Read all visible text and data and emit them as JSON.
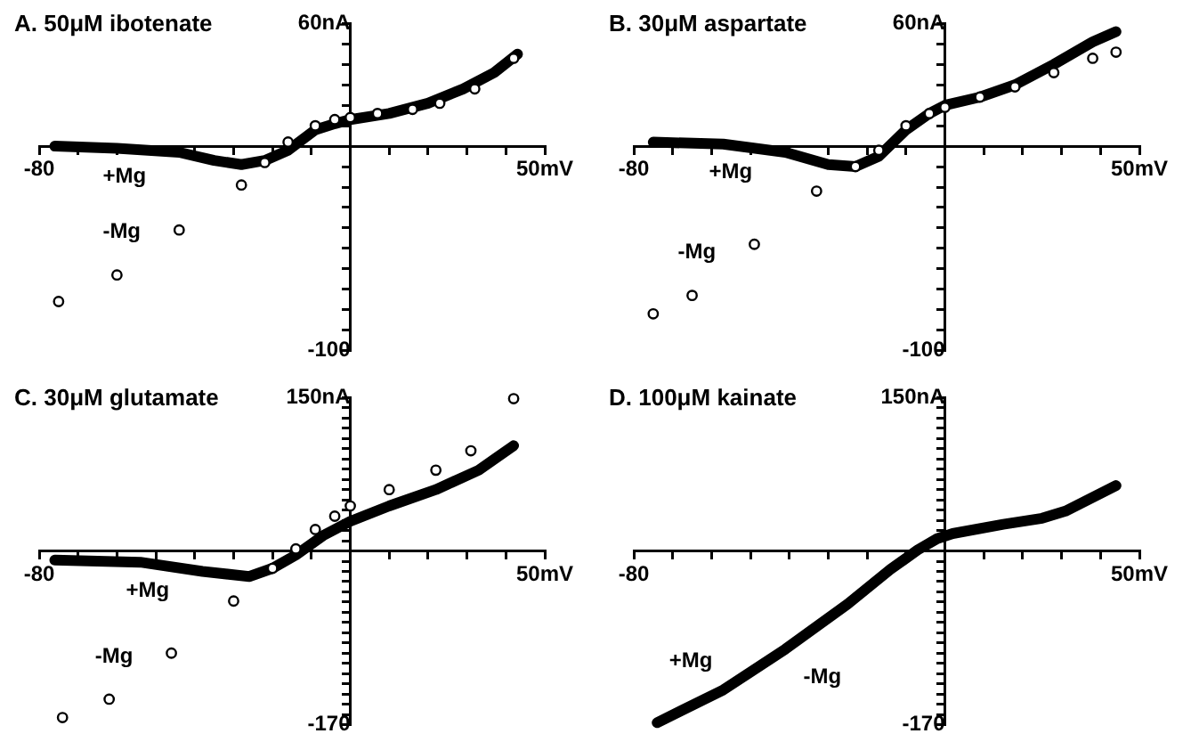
{
  "chart_data": [
    {
      "type": "line",
      "title": "A. 50μM ibotenate",
      "xlim": [
        -80,
        50
      ],
      "ylim": [
        -100,
        60
      ],
      "xticks": [
        {
          "value": -80,
          "label": "-80"
        },
        {
          "value": -70,
          "label": null
        },
        {
          "value": -60,
          "label": null
        },
        {
          "value": -50,
          "label": null
        },
        {
          "value": -40,
          "label": null
        },
        {
          "value": -30,
          "label": null
        },
        {
          "value": -20,
          "label": null
        },
        {
          "value": -10,
          "label": null
        },
        {
          "value": 0,
          "label": null
        },
        {
          "value": 10,
          "label": null
        },
        {
          "value": 20,
          "label": null
        },
        {
          "value": 30,
          "label": null
        },
        {
          "value": 40,
          "label": null
        },
        {
          "value": 50,
          "label": "50mV"
        }
      ],
      "yticks": [
        {
          "value": -100,
          "label": "-100"
        },
        {
          "value": -90,
          "label": null
        },
        {
          "value": -80,
          "label": null
        },
        {
          "value": -70,
          "label": null
        },
        {
          "value": -60,
          "label": null
        },
        {
          "value": -50,
          "label": null
        },
        {
          "value": -40,
          "label": null
        },
        {
          "value": -30,
          "label": null
        },
        {
          "value": -20,
          "label": null
        },
        {
          "value": -10,
          "label": null
        },
        {
          "value": 0,
          "label": null
        },
        {
          "value": 10,
          "label": null
        },
        {
          "value": 20,
          "label": null
        },
        {
          "value": 30,
          "label": null
        },
        {
          "value": 40,
          "label": null
        },
        {
          "value": 50,
          "label": null
        },
        {
          "value": 60,
          "label": "60nA"
        }
      ],
      "series": [
        {
          "name": "+Mg",
          "type": "line",
          "color": "#000000",
          "x": [
            -76,
            -60,
            -44,
            -35,
            -28,
            -22,
            -16,
            -9,
            -4,
            0,
            10,
            20,
            29,
            37,
            43
          ],
          "values": [
            0,
            -1,
            -3,
            -7,
            -9,
            -7,
            -2,
            8,
            11,
            13,
            16,
            21,
            28,
            36,
            45
          ]
        },
        {
          "name": "-Mg",
          "type": "scatter",
          "marker": "circle",
          "color": "#000000",
          "x": [
            -75,
            -60,
            -44,
            -28,
            -22,
            -16,
            -9,
            -4,
            0,
            7,
            16,
            23,
            32,
            42
          ],
          "values": [
            -76,
            -63,
            -41,
            -19,
            -8,
            2,
            10,
            13,
            14,
            16,
            18,
            21,
            28,
            43
          ]
        }
      ]
    },
    {
      "type": "line",
      "title": "B. 30μM aspartate",
      "xlim": [
        -80,
        50
      ],
      "ylim": [
        -100,
        60
      ],
      "xticks": [
        {
          "value": -80,
          "label": "-80"
        },
        {
          "value": -70,
          "label": null
        },
        {
          "value": -60,
          "label": null
        },
        {
          "value": -50,
          "label": null
        },
        {
          "value": -40,
          "label": null
        },
        {
          "value": -30,
          "label": null
        },
        {
          "value": -20,
          "label": null
        },
        {
          "value": -10,
          "label": null
        },
        {
          "value": 0,
          "label": null
        },
        {
          "value": 10,
          "label": null
        },
        {
          "value": 20,
          "label": null
        },
        {
          "value": 30,
          "label": null
        },
        {
          "value": 40,
          "label": null
        },
        {
          "value": 50,
          "label": "50mV"
        }
      ],
      "yticks": [
        {
          "value": -100,
          "label": "-100"
        },
        {
          "value": -90,
          "label": null
        },
        {
          "value": -80,
          "label": null
        },
        {
          "value": -70,
          "label": null
        },
        {
          "value": -60,
          "label": null
        },
        {
          "value": -50,
          "label": null
        },
        {
          "value": -40,
          "label": null
        },
        {
          "value": -30,
          "label": null
        },
        {
          "value": -20,
          "label": null
        },
        {
          "value": -10,
          "label": null
        },
        {
          "value": 0,
          "label": null
        },
        {
          "value": 10,
          "label": null
        },
        {
          "value": 20,
          "label": null
        },
        {
          "value": 30,
          "label": null
        },
        {
          "value": 40,
          "label": null
        },
        {
          "value": 50,
          "label": null
        },
        {
          "value": 60,
          "label": "60nA"
        }
      ],
      "series": [
        {
          "name": "+Mg",
          "type": "line",
          "color": "#000000",
          "x": [
            -75,
            -57,
            -41,
            -30,
            -23,
            -17,
            -10,
            -4,
            0,
            9,
            18,
            28,
            38,
            44
          ],
          "values": [
            2,
            1,
            -3,
            -9,
            -10,
            -5,
            8,
            16,
            20,
            24,
            30,
            40,
            51,
            56
          ]
        },
        {
          "name": "-Mg",
          "type": "scatter",
          "marker": "circle",
          "color": "#000000",
          "x": [
            -75,
            -65,
            -49,
            -33,
            -23,
            -17,
            -10,
            -4,
            0,
            9,
            18,
            28,
            38,
            44
          ],
          "values": [
            -82,
            -73,
            -48,
            -22,
            -10,
            -2,
            10,
            16,
            19,
            24,
            29,
            36,
            43,
            46
          ]
        }
      ]
    },
    {
      "type": "line",
      "title": "C. 30μM glutamate",
      "xlim": [
        -80,
        50
      ],
      "ylim": [
        -170,
        150
      ],
      "xticks": [
        {
          "value": -80,
          "label": "-80"
        },
        {
          "value": -70,
          "label": null
        },
        {
          "value": -60,
          "label": null
        },
        {
          "value": -50,
          "label": null
        },
        {
          "value": -40,
          "label": null
        },
        {
          "value": -30,
          "label": null
        },
        {
          "value": -20,
          "label": null
        },
        {
          "value": -10,
          "label": null
        },
        {
          "value": 0,
          "label": null
        },
        {
          "value": 10,
          "label": null
        },
        {
          "value": 20,
          "label": null
        },
        {
          "value": 30,
          "label": null
        },
        {
          "value": 40,
          "label": null
        },
        {
          "value": 50,
          "label": "50mV"
        }
      ],
      "yticks": [
        {
          "value": -170,
          "label": "-170"
        },
        {
          "value": -160,
          "label": null
        },
        {
          "value": -150,
          "label": null
        },
        {
          "value": -140,
          "label": null
        },
        {
          "value": -130,
          "label": null
        },
        {
          "value": -120,
          "label": null
        },
        {
          "value": -110,
          "label": null
        },
        {
          "value": -100,
          "label": null
        },
        {
          "value": -90,
          "label": null
        },
        {
          "value": -80,
          "label": null
        },
        {
          "value": -70,
          "label": null
        },
        {
          "value": -60,
          "label": null
        },
        {
          "value": -50,
          "label": null
        },
        {
          "value": -40,
          "label": null
        },
        {
          "value": -30,
          "label": null
        },
        {
          "value": -20,
          "label": null
        },
        {
          "value": -10,
          "label": null
        },
        {
          "value": 0,
          "label": null
        },
        {
          "value": 10,
          "label": null
        },
        {
          "value": 20,
          "label": null
        },
        {
          "value": 30,
          "label": null
        },
        {
          "value": 40,
          "label": null
        },
        {
          "value": 50,
          "label": null
        },
        {
          "value": 60,
          "label": null
        },
        {
          "value": 70,
          "label": null
        },
        {
          "value": 80,
          "label": null
        },
        {
          "value": 90,
          "label": null
        },
        {
          "value": 100,
          "label": null
        },
        {
          "value": 110,
          "label": null
        },
        {
          "value": 120,
          "label": null
        },
        {
          "value": 130,
          "label": null
        },
        {
          "value": 140,
          "label": null
        },
        {
          "value": 150,
          "label": "150nA"
        }
      ],
      "series": [
        {
          "name": "+Mg",
          "type": "line",
          "color": "#000000",
          "x": [
            -76,
            -54,
            -38,
            -26,
            -20,
            -14,
            -7,
            0,
            10,
            22,
            33,
            42
          ],
          "values": [
            -9,
            -11,
            -20,
            -25,
            -17,
            -4,
            15,
            29,
            44,
            60,
            79,
            103
          ]
        },
        {
          "name": "-Mg",
          "type": "scatter",
          "marker": "circle",
          "color": "#000000",
          "x": [
            -74,
            -62,
            -46,
            -30,
            -20,
            -14,
            -9,
            -4,
            0,
            10,
            22,
            31,
            42
          ],
          "values": [
            -163,
            -145,
            -100,
            -49,
            -17,
            2,
            21,
            34,
            44,
            60,
            79,
            98,
            149
          ]
        }
      ]
    },
    {
      "type": "line",
      "title": "D. 100μM kainate",
      "xlim": [
        -80,
        50
      ],
      "ylim": [
        -170,
        150
      ],
      "xticks": [
        {
          "value": -80,
          "label": "-80"
        },
        {
          "value": -70,
          "label": null
        },
        {
          "value": -60,
          "label": null
        },
        {
          "value": -50,
          "label": null
        },
        {
          "value": -40,
          "label": null
        },
        {
          "value": -30,
          "label": null
        },
        {
          "value": -20,
          "label": null
        },
        {
          "value": -10,
          "label": null
        },
        {
          "value": 0,
          "label": null
        },
        {
          "value": 10,
          "label": null
        },
        {
          "value": 20,
          "label": null
        },
        {
          "value": 30,
          "label": null
        },
        {
          "value": 40,
          "label": null
        },
        {
          "value": 50,
          "label": "50mV"
        }
      ],
      "yticks": [
        {
          "value": -170,
          "label": "-170"
        },
        {
          "value": -160,
          "label": null
        },
        {
          "value": -150,
          "label": null
        },
        {
          "value": -140,
          "label": null
        },
        {
          "value": -130,
          "label": null
        },
        {
          "value": -120,
          "label": null
        },
        {
          "value": -110,
          "label": null
        },
        {
          "value": -100,
          "label": null
        },
        {
          "value": -90,
          "label": null
        },
        {
          "value": -80,
          "label": null
        },
        {
          "value": -70,
          "label": null
        },
        {
          "value": -60,
          "label": null
        },
        {
          "value": -50,
          "label": null
        },
        {
          "value": -40,
          "label": null
        },
        {
          "value": -30,
          "label": null
        },
        {
          "value": -20,
          "label": null
        },
        {
          "value": -10,
          "label": null
        },
        {
          "value": 0,
          "label": null
        },
        {
          "value": 10,
          "label": null
        },
        {
          "value": 20,
          "label": null
        },
        {
          "value": 30,
          "label": null
        },
        {
          "value": 40,
          "label": null
        },
        {
          "value": 50,
          "label": null
        },
        {
          "value": 60,
          "label": null
        },
        {
          "value": 70,
          "label": null
        },
        {
          "value": 80,
          "label": null
        },
        {
          "value": 90,
          "label": null
        },
        {
          "value": 100,
          "label": null
        },
        {
          "value": 110,
          "label": null
        },
        {
          "value": 120,
          "label": null
        },
        {
          "value": 130,
          "label": null
        },
        {
          "value": 140,
          "label": null
        },
        {
          "value": 150,
          "label": "150nA"
        }
      ],
      "series": [
        {
          "type": "line",
          "color": "#000000",
          "x": [
            -74,
            -57,
            -41,
            -25,
            -14,
            -7,
            -2,
            2,
            15,
            25,
            31,
            44
          ],
          "values": [
            -168,
            -136,
            -96,
            -52,
            -18,
            1,
            12,
            17,
            26,
            32,
            39,
            64
          ]
        }
      ],
      "annotations": [
        "+Mg",
        "-Mg"
      ]
    }
  ]
}
